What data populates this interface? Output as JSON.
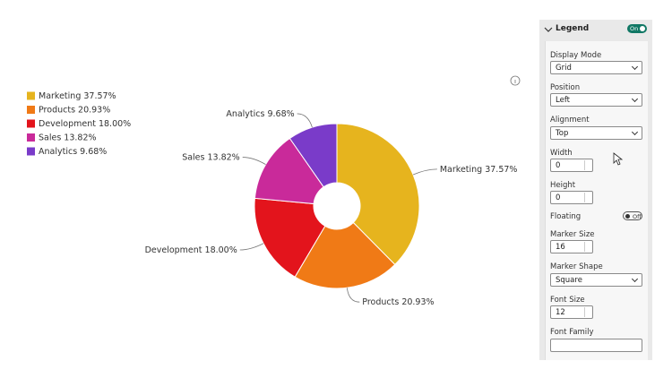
{
  "chart_data": {
    "type": "pie",
    "categories": [
      "Marketing",
      "Products",
      "Development",
      "Sales",
      "Analytics"
    ],
    "values": [
      37.57,
      20.93,
      18.0,
      13.82,
      9.68
    ],
    "value_labels": [
      "37.57%",
      "20.93%",
      "18.00%",
      "13.82%",
      "9.68%"
    ],
    "colors": [
      "#e6b41e",
      "#f07a16",
      "#e3141c",
      "#c92a9a",
      "#7a3bc9"
    ],
    "legend": "left"
  },
  "format_pane": {
    "title": "Legend",
    "toggle": "On",
    "display_mode": {
      "label": "Display Mode",
      "value": "Grid"
    },
    "position": {
      "label": "Position",
      "value": "Left"
    },
    "alignment": {
      "label": "Alignment",
      "value": "Top"
    },
    "width": {
      "label": "Width",
      "value": "0"
    },
    "height": {
      "label": "Height",
      "value": "0"
    },
    "floating": {
      "label": "Floating",
      "value": "Off"
    },
    "marker_size": {
      "label": "Marker Size",
      "value": "16"
    },
    "marker_shape": {
      "label": "Marker Shape",
      "value": "Square"
    },
    "font_size": {
      "label": "Font Size",
      "value": "12"
    },
    "font_family": {
      "label": "Font Family"
    }
  }
}
